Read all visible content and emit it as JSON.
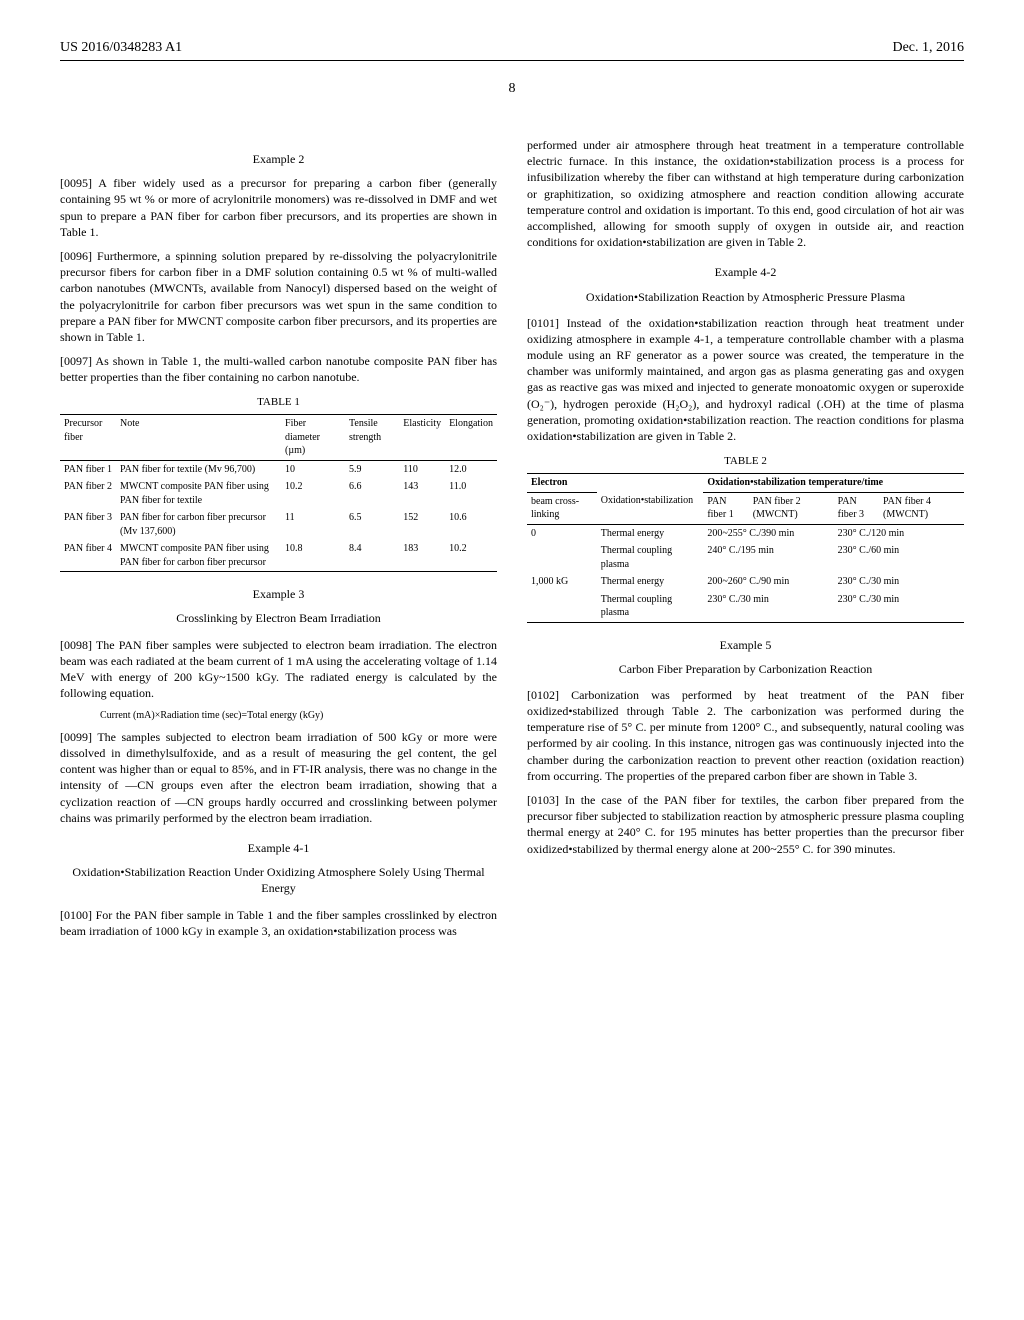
{
  "header": {
    "pub_number": "US 2016/0348283 A1",
    "pub_date": "Dec. 1, 2016"
  },
  "page_number": "8",
  "left": {
    "ex2_title": "Example 2",
    "p0095": "[0095]   A fiber widely used as a precursor for preparing a carbon fiber (generally containing 95 wt % or more of acrylonitrile monomers) was re-dissolved in DMF and wet spun to prepare a PAN fiber for carbon fiber precursors, and its properties are shown in Table 1.",
    "p0096": "[0096]   Furthermore, a spinning solution prepared by re-dissolving the polyacrylonitrile precursor fibers for carbon fiber in a DMF solution containing 0.5 wt % of multi-walled carbon nanotubes (MWCNTs, available from Nanocyl) dispersed based on the weight of the polyacrylonitrile for carbon fiber precursors was wet spun in the same condition to prepare a PAN fiber for MWCNT composite carbon fiber precursors, and its properties are shown in Table 1.",
    "p0097": "[0097]   As shown in Table 1, the multi-walled carbon nanotube composite PAN fiber has better properties than the fiber containing no carbon nanotube.",
    "table1": {
      "caption": "TABLE 1",
      "cols": [
        "Precursor fiber",
        "Note",
        "Fiber diameter (µm)",
        "Tensile strength",
        "Elasticity",
        "Elongation"
      ],
      "rows": [
        [
          "PAN fiber 1",
          "PAN fiber for textile (Mv 96,700)",
          "10",
          "5.9",
          "110",
          "12.0"
        ],
        [
          "PAN fiber 2",
          "MWCNT composite PAN fiber using PAN fiber for textile",
          "10.2",
          "6.6",
          "143",
          "11.0"
        ],
        [
          "PAN fiber 3",
          "PAN fiber for carbon fiber precursor (Mv 137,600)",
          "11",
          "6.5",
          "152",
          "10.6"
        ],
        [
          "PAN fiber 4",
          "MWCNT composite PAN fiber using PAN fiber for carbon fiber precursor",
          "10.8",
          "8.4",
          "183",
          "10.2"
        ]
      ]
    },
    "ex3_title": "Example 3",
    "ex3_sub": "Crosslinking by Electron Beam Irradiation",
    "p0098": "[0098]   The PAN fiber samples were subjected to electron beam irradiation. The electron beam was each radiated at the beam current of 1 mA using the accelerating voltage of 1.14 MeV with energy of 200 kGy~1500 kGy. The radiated energy is calculated by the following equation.",
    "eq": "Current (mA)×Radiation time (sec)=Total energy (kGy)",
    "p0099": "[0099]   The samples subjected to electron beam irradiation of 500 kGy or more were dissolved in dimethylsulfoxide, and as a result of measuring the gel content, the gel content was higher than or equal to 85%, and in FT-IR analysis, there was no change in the intensity of —CN groups even after the electron beam irradiation, showing that a cyclization reaction of —CN groups hardly occurred and crosslinking between polymer chains was primarily performed by the electron beam irradiation.",
    "ex41_title": "Example 4-1",
    "ex41_sub": "Oxidation•Stabilization Reaction Under Oxidizing Atmosphere Solely Using Thermal Energy",
    "p0100": "[0100]   For the PAN fiber sample in Table 1 and the fiber samples crosslinked by electron beam irradiation of 1000 kGy in example 3, an oxidation•stabilization process was"
  },
  "right": {
    "cont": "performed under air atmosphere through heat treatment in a temperature controllable electric furnace. In this instance, the oxidation•stabilization process is a process for infusibilization whereby the fiber can withstand at high temperature during carbonization or graphitization, so oxidizing atmosphere and reaction condition allowing accurate temperature control and oxidation is important. To this end, good circulation of hot air was accomplished, allowing for smooth supply of oxygen in outside air, and reaction conditions for oxidation•stabilization are given in Table 2.",
    "ex42_title": "Example 4-2",
    "ex42_sub": "Oxidation•Stabilization Reaction by Atmospheric Pressure Plasma",
    "p0101": "[0101]   Instead of the oxidation•stabilization reaction through heat treatment under oxidizing atmosphere in example 4-1, a temperature controllable chamber with a plasma module using an RF generator as a power source was created, the temperature in the chamber was uniformly maintained, and argon gas as plasma generating gas and oxygen gas as reactive gas was mixed and injected to generate monoatomic oxygen or superoxide (O₂⁻), hydrogen peroxide (H₂O₂), and hydroxyl radical (.OH) at the time of plasma generation, promoting oxidation•stabilization reaction. The reaction conditions for plasma oxidation•stabilization are given in Table 2.",
    "table2": {
      "caption": "TABLE 2",
      "h_electron": "Electron",
      "h_span": "Oxidation•stabilization temperature/time",
      "h_beam": "beam cross-linking",
      "h_oxida": "Oxidation•stabilization",
      "h_f1": "PAN fiber 1",
      "h_f2": "PAN fiber 2 (MWCNT)",
      "h_f3": "PAN fiber 3",
      "h_f4": "PAN fiber 4 (MWCNT)",
      "rows": [
        [
          "0",
          "Thermal energy",
          "200~255° C./390 min",
          "",
          "230° C./120 min",
          ""
        ],
        [
          "",
          "Thermal coupling plasma",
          "240° C./195 min",
          "",
          "230° C./60 min",
          ""
        ],
        [
          "1,000 kG",
          "Thermal energy",
          "200~260° C./90 min",
          "",
          "230° C./30 min",
          ""
        ],
        [
          "",
          "Thermal coupling plasma",
          "230° C./30 min",
          "",
          "230° C./30 min",
          ""
        ]
      ]
    },
    "ex5_title": "Example 5",
    "ex5_sub": "Carbon Fiber Preparation by Carbonization Reaction",
    "p0102": "[0102]   Carbonization was performed by heat treatment of the PAN fiber oxidized•stabilized through Table 2. The carbonization was performed during the temperature rise of 5° C. per minute from 1200° C., and subsequently, natural cooling was performed by air cooling. In this instance, nitrogen gas was continuously injected into the chamber during the carbonization reaction to prevent other reaction (oxidation reaction) from occurring. The properties of the prepared carbon fiber are shown in Table 3.",
    "p0103": "[0103]   In the case of the PAN fiber for textiles, the carbon fiber prepared from the precursor fiber subjected to stabilization reaction by atmospheric pressure plasma coupling thermal energy at 240° C. for 195 minutes has better properties than the precursor fiber oxidized•stabilized by thermal energy alone at 200~255° C. for 390 minutes."
  }
}
